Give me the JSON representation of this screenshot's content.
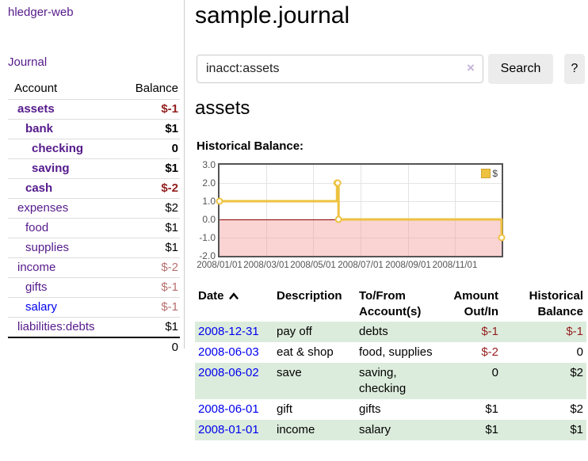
{
  "app": {
    "brand": "hledger-web"
  },
  "nav": {
    "journal": "Journal"
  },
  "sidebar": {
    "columns": {
      "account": "Account",
      "balance": "Balance"
    },
    "accounts": [
      {
        "name": "assets",
        "balance": "$-1",
        "level": 1,
        "bold": true,
        "neg": "strong"
      },
      {
        "name": "bank",
        "balance": "$1",
        "level": 2,
        "bold": true,
        "neg": "none"
      },
      {
        "name": "checking",
        "balance": "0",
        "level": 3,
        "bold": true,
        "neg": "none"
      },
      {
        "name": "saving",
        "balance": "$1",
        "level": 3,
        "bold": true,
        "neg": "none"
      },
      {
        "name": "cash",
        "balance": "$-2",
        "level": 2,
        "bold": true,
        "neg": "strong"
      },
      {
        "name": "expenses",
        "balance": "$2",
        "level": 1,
        "bold": false,
        "neg": "none"
      },
      {
        "name": "food",
        "balance": "$1",
        "level": 2,
        "bold": false,
        "neg": "none"
      },
      {
        "name": "supplies",
        "balance": "$1",
        "level": 2,
        "bold": false,
        "neg": "none"
      },
      {
        "name": "income",
        "balance": "$-2",
        "level": 1,
        "bold": false,
        "neg": "soft"
      },
      {
        "name": "gifts",
        "balance": "$-1",
        "level": 2,
        "bold": false,
        "neg": "soft"
      },
      {
        "name": "salary",
        "balance": "$-1",
        "level": 2,
        "bold": false,
        "neg": "soft",
        "link_color": "blue"
      },
      {
        "name": "liabilities:debts",
        "balance": "$1",
        "level": 1,
        "bold": false,
        "neg": "none"
      }
    ],
    "total": "0"
  },
  "main": {
    "title": "sample.journal",
    "account_heading": "assets",
    "chart_heading": "Historical Balance:"
  },
  "search": {
    "value": "inacct:assets",
    "clear_icon": "×",
    "search_button": "Search",
    "help_button": "?"
  },
  "chart_data": {
    "type": "line",
    "step": true,
    "title": "Historical Balance:",
    "series": [
      {
        "name": "$",
        "points": [
          [
            "2008-01-01",
            1
          ],
          [
            "2008-06-01",
            2
          ],
          [
            "2008-06-02",
            2
          ],
          [
            "2008-06-03",
            0
          ],
          [
            "2008-12-31",
            -1
          ]
        ]
      }
    ],
    "xlim": [
      "2008-01-01",
      "2008-12-31"
    ],
    "ylim": [
      -2,
      3
    ],
    "yticks": [
      3,
      2,
      1,
      0,
      -1,
      -2
    ],
    "xticks": [
      {
        "date": "2008-01-01",
        "label": "2008/01/01"
      },
      {
        "date": "2008-03-01",
        "label": "2008/03/01"
      },
      {
        "date": "2008-05-01",
        "label": "2008/05/01"
      },
      {
        "date": "2008-07-01",
        "label": "2008/07/01"
      },
      {
        "date": "2008-09-01",
        "label": "2008/09/01"
      },
      {
        "date": "2008-11-01",
        "label": "2008/11/01"
      }
    ],
    "legend": {
      "label": "$",
      "position": "top-right"
    },
    "grid": true,
    "colors": {
      "line": "#edc240",
      "marker_fill": "#ffffff",
      "negative_fill": "#f8d8d8",
      "zero_line": "#8b0000",
      "grid": "#e3e3e3",
      "border": "#545454",
      "tick_text": "#545454"
    }
  },
  "register": {
    "columns": {
      "date": "Date",
      "description": "Description",
      "accounts": "To/From Account(s)",
      "amount": "Amount Out/In",
      "balance": "Historical Balance"
    },
    "rows": [
      {
        "date": "2008-12-31",
        "description": "pay off",
        "accounts": "debts",
        "amount": "$-1",
        "balance": "$-1"
      },
      {
        "date": "2008-06-03",
        "description": "eat & shop",
        "accounts": "food, supplies",
        "amount": "$-2",
        "balance": "0"
      },
      {
        "date": "2008-06-02",
        "description": "save",
        "accounts": "saving, checking",
        "amount": "0",
        "balance": "$2"
      },
      {
        "date": "2008-06-01",
        "description": "gift",
        "accounts": "gifts",
        "amount": "$1",
        "balance": "$2"
      },
      {
        "date": "2008-01-01",
        "description": "income",
        "accounts": "salary",
        "amount": "$1",
        "balance": "$1"
      }
    ]
  }
}
